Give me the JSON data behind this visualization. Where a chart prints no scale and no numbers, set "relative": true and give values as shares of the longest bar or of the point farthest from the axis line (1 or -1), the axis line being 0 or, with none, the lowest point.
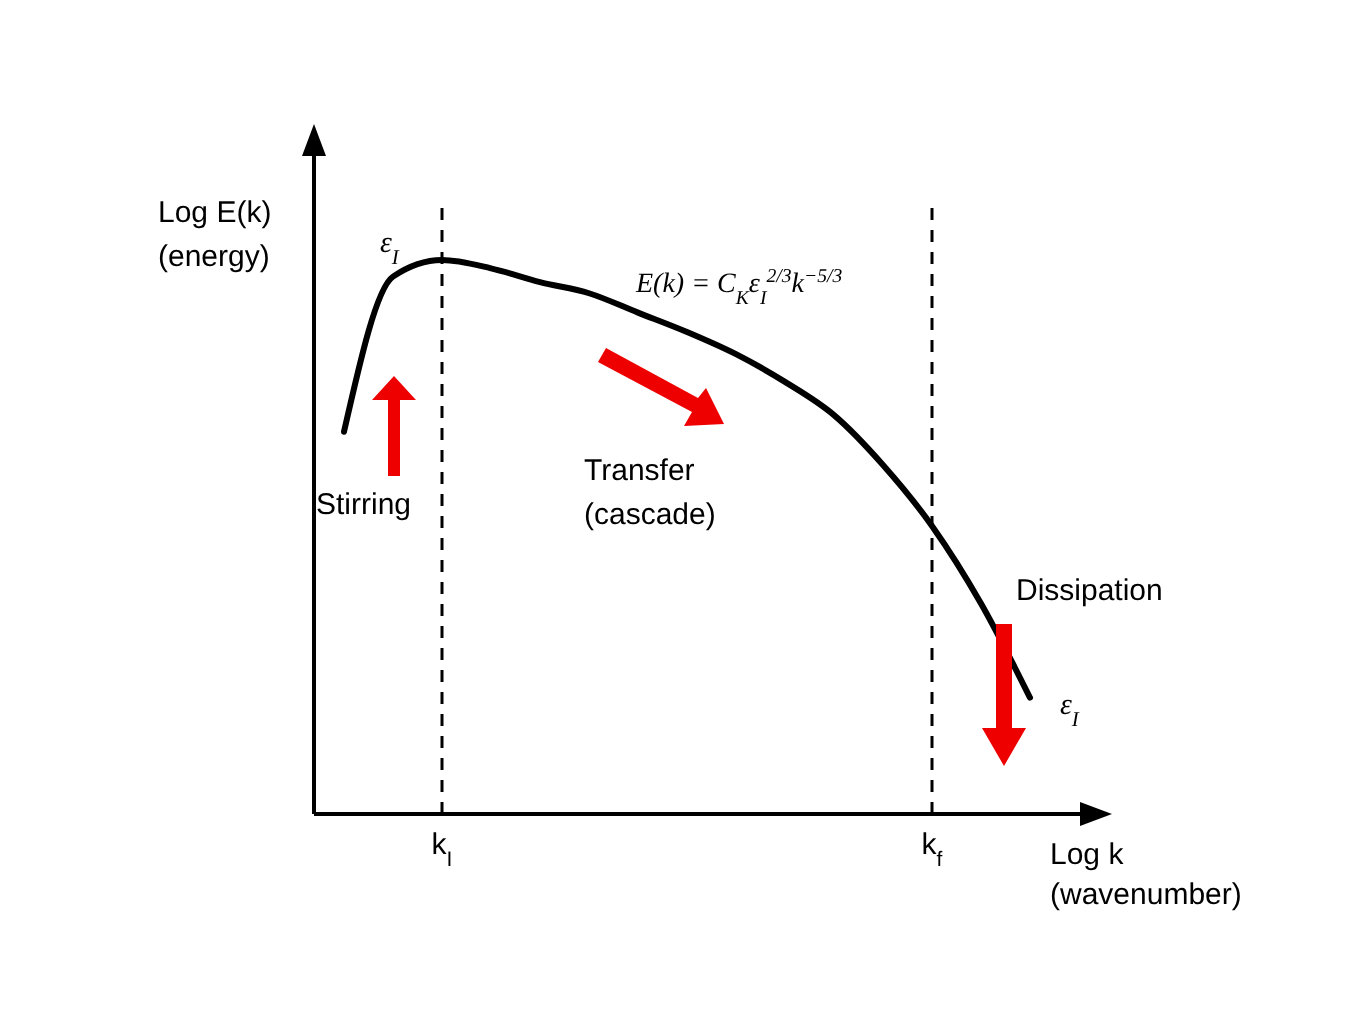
{
  "chart_data": {
    "type": "line",
    "relative": true,
    "xlabel": "Log k (wavenumber)",
    "ylabel": "Log E(k) (energy)",
    "categories": [
      null,
      null,
      "k$_{I}$",
      null,
      null,
      null,
      null,
      null,
      null,
      null,
      null,
      null,
      "k$_{f}$",
      null,
      null
    ],
    "series": [
      {
        "color": "#000000",
        "values": [
          0.69,
          0.97,
          1,
          0.985,
          0.96,
          0.94,
          0.905,
          0.87,
          0.83,
          0.78,
          0.72,
          0.63,
          0.52,
          0.38,
          0.21
        ]
      }
    ],
    "ref_lines": [
      {
        "axis": "x",
        "value": "k$_{I}$",
        "color": "#000000",
        "line_style": "dashed"
      },
      {
        "axis": "x",
        "value": "k$_{f}$",
        "color": "#000000",
        "line_style": "dashed"
      }
    ],
    "annotations": [
      "ε$_{I}$",
      "E(k) = C$_{K}$ε$_{I}$$^{2/3}$k$^{−5/3}$",
      "Stirring",
      "Transfer (cascade)",
      "Dissipation",
      "ε$_{I}$"
    ],
    "marker": "none",
    "line_style": "solid",
    "grid": false
  }
}
